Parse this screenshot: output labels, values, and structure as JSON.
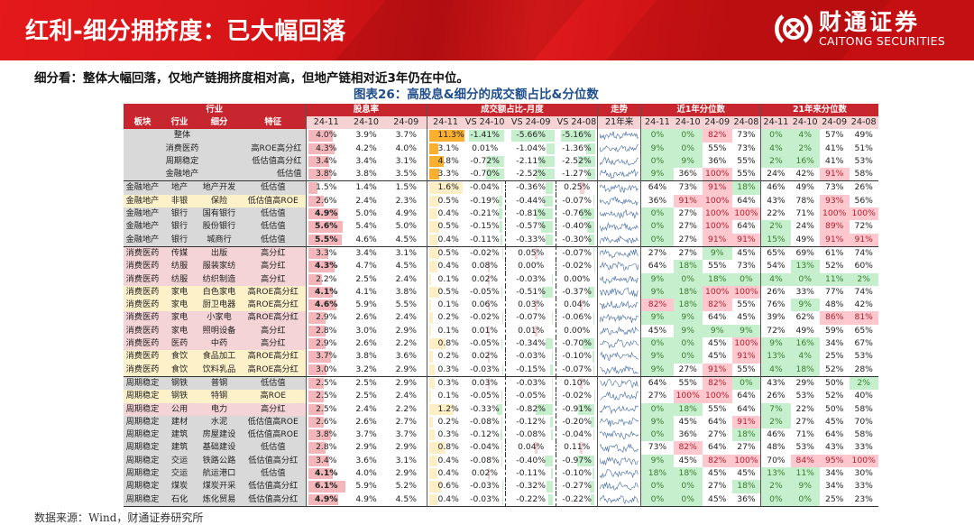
{
  "header": {
    "title": "红利-细分拥挤度：已大幅回落",
    "logo_cn": "财通证券",
    "logo_en": "CAITONG SECURITIES",
    "brand_color": "#d7171b"
  },
  "subtitle": "细分看：整体大幅回落，仅地产链拥挤度相对高，但地产链相对近3年仍在中位。",
  "figure_title": "图表26：高股息&细分的成交额占比&分位数",
  "source": "数据来源：Wind，财通证券研究所",
  "table": {
    "group_headers": [
      "行业",
      "股息率",
      "成交额占比-月度",
      "走势",
      "近1年分位数",
      "21年来分位数"
    ],
    "sub_headers": {
      "industry": [
        "板块",
        "行业",
        "细分",
        "特征"
      ],
      "dividend": [
        "24-11",
        "24-10",
        "24-09"
      ],
      "turnover": [
        "24-11",
        "VS 24-10",
        "VS 24-09",
        "VS 24-08"
      ],
      "trend": "21年来",
      "pct1y": [
        "24-11",
        "24-10",
        "24-09",
        "24-08"
      ],
      "pct21": [
        "24-11",
        "24-10",
        "24-09",
        "24-08"
      ]
    },
    "rows": [
      {
        "block": "",
        "ind": "整体",
        "sub": "",
        "feat": "",
        "div": [
          "4.0%",
          "3.9%",
          "3.7%"
        ],
        "to": [
          "11.3%",
          "-1.41%",
          "-5.66%",
          "-5.16%"
        ],
        "p1": [
          "0%",
          "0%",
          "82%",
          "73%"
        ],
        "p21": [
          "0%",
          "4%",
          "57%",
          "49%"
        ]
      },
      {
        "block": "",
        "ind": "消费医药",
        "sub": "",
        "feat": "高ROE高分红",
        "div": [
          "4.3%",
          "4.2%",
          "4.0%"
        ],
        "to": [
          "3.1%",
          "0.01%",
          "-1.04%",
          "-1.36%"
        ],
        "p1": [
          "9%",
          "0%",
          "55%",
          "73%"
        ],
        "p21": [
          "4%",
          "2%",
          "41%",
          "51%"
        ]
      },
      {
        "block": "",
        "ind": "周期稳定",
        "sub": "",
        "feat": "低估值高分红",
        "div": [
          "3.4%",
          "3.4%",
          "3.1%"
        ],
        "to": [
          "4.8%",
          "-0.72%",
          "-2.11%",
          "-2.52%"
        ],
        "p1": [
          "0%",
          "9%",
          "36%",
          "55%"
        ],
        "p21": [
          "2%",
          "16%",
          "41%",
          "53%"
        ]
      },
      {
        "block": "",
        "ind": "金融地产",
        "sub": "",
        "feat": "低估值",
        "div": [
          "3.8%",
          "3.8%",
          "3.5%"
        ],
        "to": [
          "3.3%",
          "-0.70%",
          "-2.52%",
          "-1.27%"
        ],
        "p1": [
          "9%",
          "36%",
          "100%",
          "55%"
        ],
        "p21": [
          "24%",
          "42%",
          "91%",
          "58%"
        ]
      },
      {
        "block": "金融地产",
        "ind": "地产",
        "sub": "地产开发",
        "feat": "低估值",
        "div": [
          "1.5%",
          "1.4%",
          "1.5%"
        ],
        "to": [
          "1.6%",
          "-0.04%",
          "-0.36%",
          "0.25%"
        ],
        "p1": [
          "64%",
          "73%",
          "91%",
          "18%"
        ],
        "p21": [
          "46%",
          "49%",
          "73%",
          "26%"
        ]
      },
      {
        "block": "金融地产",
        "ind": "非银",
        "sub": "保险",
        "feat": "低估值高ROE",
        "div": [
          "2.6%",
          "2.4%",
          "2.3%"
        ],
        "to": [
          "0.5%",
          "-0.19%",
          "-0.44%",
          "-0.07%"
        ],
        "p1": [
          "36%",
          "91%",
          "100%",
          "64%"
        ],
        "p21": [
          "43%",
          "78%",
          "93%",
          "56%"
        ]
      },
      {
        "block": "金融地产",
        "ind": "银行",
        "sub": "国有银行",
        "feat": "低估值",
        "div": [
          "4.9%",
          "5.0%",
          "4.9%"
        ],
        "to": [
          "0.4%",
          "-0.21%",
          "-0.81%",
          "-0.76%"
        ],
        "p1": [
          "0%",
          "27%",
          "100%",
          "100%"
        ],
        "p21": [
          "22%",
          "71%",
          "100%",
          "100%"
        ]
      },
      {
        "block": "金融地产",
        "ind": "银行",
        "sub": "股份银行",
        "feat": "低估值",
        "div": [
          "5.6%",
          "5.4%",
          "5.0%"
        ],
        "to": [
          "0.5%",
          "-0.15%",
          "-0.57%",
          "-0.40%"
        ],
        "p1": [
          "0%",
          "27%",
          "100%",
          "64%"
        ],
        "p21": [
          "2%",
          "24%",
          "89%",
          "72%"
        ]
      },
      {
        "block": "金融地产",
        "ind": "银行",
        "sub": "城商行",
        "feat": "低估值",
        "div": [
          "5.5%",
          "4.6%",
          "4.5%"
        ],
        "to": [
          "0.4%",
          "-0.11%",
          "-0.33%",
          "-0.30%"
        ],
        "p1": [
          "0%",
          "27%",
          "91%",
          "91%"
        ],
        "p21": [
          "15%",
          "49%",
          "91%",
          "91%"
        ]
      },
      {
        "block": "消费医药",
        "ind": "传媒",
        "sub": "出版",
        "feat": "高分红",
        "div": [
          "3.3%",
          "3.4%",
          "3.1%"
        ],
        "to": [
          "0.5%",
          "-0.02%",
          "0.05%",
          "-0.07%"
        ],
        "p1": [
          "27%",
          "27%",
          "9%",
          "45%"
        ],
        "p21": [
          "65%",
          "69%",
          "61%",
          "74%"
        ]
      },
      {
        "block": "消费医药",
        "ind": "纺服",
        "sub": "服装家纺",
        "feat": "高分红",
        "div": [
          "4.3%",
          "4.7%",
          "4.5%"
        ],
        "to": [
          "0.4%",
          "0.08%",
          "0.00%",
          "-0.02%"
        ],
        "p1": [
          "64%",
          "18%",
          "55%",
          "73%"
        ],
        "p21": [
          "54%",
          "13%",
          "52%",
          "60%"
        ]
      },
      {
        "block": "消费医药",
        "ind": "纺服",
        "sub": "纺织制造",
        "feat": "高分红",
        "div": [
          "2.2%",
          "2.5%",
          "2.4%"
        ],
        "to": [
          "0.1%",
          "0.02%",
          "-0.03%",
          "0.00%"
        ],
        "p1": [
          "9%",
          "0%",
          "18%",
          "0%"
        ],
        "p21": [
          "4%",
          "0%",
          "11%",
          "2%"
        ]
      },
      {
        "block": "消费医药",
        "ind": "家电",
        "sub": "白色家电",
        "feat": "高ROE高分红",
        "div": [
          "4.1%",
          "4.1%",
          "3.8%"
        ],
        "to": [
          "0.5%",
          "-0.05%",
          "-0.51%",
          "-0.37%"
        ],
        "p1": [
          "9%",
          "18%",
          "100%",
          "100%"
        ],
        "p21": [
          "26%",
          "33%",
          "77%",
          "74%"
        ]
      },
      {
        "block": "消费医药",
        "ind": "家电",
        "sub": "厨卫电器",
        "feat": "高ROE高分红",
        "div": [
          "4.6%",
          "5.9%",
          "5.5%"
        ],
        "to": [
          "0.1%",
          "0.06%",
          "0.03%",
          "0.04%"
        ],
        "p1": [
          "82%",
          "18%",
          "82%",
          "55%"
        ],
        "p21": [
          "76%",
          "9%",
          "48%",
          "42%"
        ]
      },
      {
        "block": "消费医药",
        "ind": "家电",
        "sub": "小家电",
        "feat": "高ROE高分红",
        "div": [
          "2.9%",
          "2.6%",
          "2.4%"
        ],
        "to": [
          "0.2%",
          "-0.02%",
          "-0.07%",
          "-0.06%"
        ],
        "p1": [
          "9%",
          "9%",
          "64%",
          "45%"
        ],
        "p21": [
          "39%",
          "62%",
          "86%",
          "81%"
        ]
      },
      {
        "block": "消费医药",
        "ind": "家电",
        "sub": "照明设备",
        "feat": "高分红",
        "div": [
          "2.8%",
          "3.0%",
          "2.9%"
        ],
        "to": [
          "0.1%",
          "0.01%",
          "0.01%",
          "0.00%"
        ],
        "p1": [
          "45%",
          "9%",
          "9%",
          "9%"
        ],
        "p21": [
          "72%",
          "49%",
          "59%",
          "65%"
        ]
      },
      {
        "block": "消费医药",
        "ind": "医药",
        "sub": "中药",
        "feat": "高分红",
        "div": [
          "2.9%",
          "2.6%",
          "2.2%"
        ],
        "to": [
          "0.8%",
          "-0.05%",
          "-0.34%",
          "-0.70%"
        ],
        "p1": [
          "0%",
          "0%",
          "45%",
          "100%"
        ],
        "p21": [
          "9%",
          "16%",
          "34%",
          "67%"
        ]
      },
      {
        "block": "消费医药",
        "ind": "食饮",
        "sub": "食品加工",
        "feat": "高ROE高分红",
        "div": [
          "3.7%",
          "3.8%",
          "3.6%"
        ],
        "to": [
          "0.2%",
          "0.02%",
          "-0.03%",
          "-0.10%"
        ],
        "p1": [
          "9%",
          "0%",
          "45%",
          "91%"
        ],
        "p21": [
          "13%",
          "4%",
          "25%",
          "53%"
        ]
      },
      {
        "block": "消费医药",
        "ind": "食饮",
        "sub": "饮料乳品",
        "feat": "高ROE高分红",
        "div": [
          "3.0%",
          "3.2%",
          "2.9%"
        ],
        "to": [
          "0.3%",
          "-0.03%",
          "-0.15%",
          "-0.07%"
        ],
        "p1": [
          "9%",
          "27%",
          "91%",
          "55%"
        ],
        "p21": [
          "4%",
          "18%",
          "52%",
          "28%"
        ]
      },
      {
        "block": "周期稳定",
        "ind": "钢铁",
        "sub": "普钢",
        "feat": "低估值",
        "div": [
          "2.5%",
          "2.5%",
          "2.9%"
        ],
        "to": [
          "0.3%",
          "0.03%",
          "-0.03%",
          "0.10%"
        ],
        "p1": [
          "64%",
          "55%",
          "82%",
          "0%"
        ],
        "p21": [
          "43%",
          "29%",
          "50%",
          "2%"
        ]
      },
      {
        "block": "周期稳定",
        "ind": "钢铁",
        "sub": "特钢",
        "feat": "高ROE",
        "div": [
          "2.5%",
          "2.5%",
          "2.4%"
        ],
        "to": [
          "0.1%",
          "-0.05%",
          "-0.05%",
          "-0.02%"
        ],
        "p1": [
          "27%",
          "100%",
          "100%",
          "64%"
        ],
        "p21": [
          "26%",
          "53%",
          "52%",
          "40%"
        ]
      },
      {
        "block": "周期稳定",
        "ind": "公用",
        "sub": "电力",
        "feat": "高分红",
        "div": [
          "2.5%",
          "2.4%",
          "2.2%"
        ],
        "to": [
          "1.2%",
          "-0.33%",
          "-0.82%",
          "-0.91%"
        ],
        "p1": [
          "0%",
          "18%",
          "55%",
          "64%"
        ],
        "p21": [
          "7%",
          "22%",
          "50%",
          "58%"
        ]
      },
      {
        "block": "周期稳定",
        "ind": "建材",
        "sub": "水泥",
        "feat": "低估值高ROE",
        "div": [
          "2.6%",
          "2.6%",
          "2.7%"
        ],
        "to": [
          "0.2%",
          "-0.08%",
          "-0.12%",
          "-0.20%"
        ],
        "p1": [
          "9%",
          "45%",
          "64%",
          "91%"
        ],
        "p21": [
          "2%",
          "27%",
          "45%",
          "70%"
        ]
      },
      {
        "block": "周期稳定",
        "ind": "建筑",
        "sub": "房屋建设",
        "feat": "低估值高ROE",
        "div": [
          "3.8%",
          "3.7%",
          "3.7%"
        ],
        "to": [
          "0.3%",
          "-0.12%",
          "-0.08%",
          "-0.04%"
        ],
        "p1": [
          "0%",
          "36%",
          "27%",
          "18%"
        ],
        "p21": [
          "46%",
          "71%",
          "64%",
          "58%"
        ]
      },
      {
        "block": "周期稳定",
        "ind": "建筑",
        "sub": "基础建设",
        "feat": "低估值",
        "div": [
          "2.8%",
          "2.9%",
          "2.9%"
        ],
        "to": [
          "0.8%",
          "-0.04%",
          "0.04%",
          "0.11%"
        ],
        "p1": [
          "73%",
          "82%",
          "64%",
          "27%"
        ],
        "p21": [
          "48%",
          "53%",
          "43%",
          "33%"
        ]
      },
      {
        "block": "周期稳定",
        "ind": "交运",
        "sub": "铁路公路",
        "feat": "低估值高分红",
        "div": [
          "3.4%",
          "3.6%",
          "3.1%"
        ],
        "to": [
          "0.4%",
          "-0.08%",
          "-0.40%",
          "-0.97%"
        ],
        "p1": [
          "9%",
          "45%",
          "82%",
          "100%"
        ],
        "p21": [
          "70%",
          "84%",
          "95%",
          "100%"
        ]
      },
      {
        "block": "周期稳定",
        "ind": "交运",
        "sub": "航运港口",
        "feat": "低估值",
        "div": [
          "4.1%",
          "4.0%",
          "2.9%"
        ],
        "to": [
          "0.4%",
          "0.02%",
          "-0.11%",
          "-0.10%"
        ],
        "p1": [
          "18%",
          "18%",
          "45%",
          "45%"
        ],
        "p21": [
          "13%",
          "11%",
          "34%",
          "30%"
        ]
      },
      {
        "block": "周期稳定",
        "ind": "煤炭",
        "sub": "煤炭开采",
        "feat": "低估值高分红",
        "div": [
          "6.1%",
          "5.9%",
          "5.2%"
        ],
        "to": [
          "0.6%",
          "-0.03%",
          "-0.32%",
          "-0.27%"
        ],
        "p1": [
          "0%",
          "0%",
          "27%",
          "18%"
        ],
        "p21": [
          "2%",
          "9%",
          "34%",
          "33%"
        ]
      },
      {
        "block": "周期稳定",
        "ind": "石化",
        "sub": "炼化贸易",
        "feat": "低估值高分红",
        "div": [
          "4.9%",
          "4.9%",
          "4.5%"
        ],
        "to": [
          "0.4%",
          "-0.03%",
          "-0.22%",
          "-0.22%"
        ],
        "p1": [
          "0%",
          "0%",
          "45%",
          "36%"
        ],
        "p21": [
          "0%",
          "0%",
          "25%",
          "23%"
        ]
      }
    ],
    "colors": {
      "header_red": "#c8262f",
      "header_light": "#f5d3d5",
      "good_green": "#c6efce",
      "hot_red": "#ffc7ce",
      "bar_pink": "#f2b6bb",
      "bar_orange": "#f8b02e",
      "bar_light_yellow": "#fdeec6",
      "sparkline_blue": "#4a6fa5"
    }
  }
}
